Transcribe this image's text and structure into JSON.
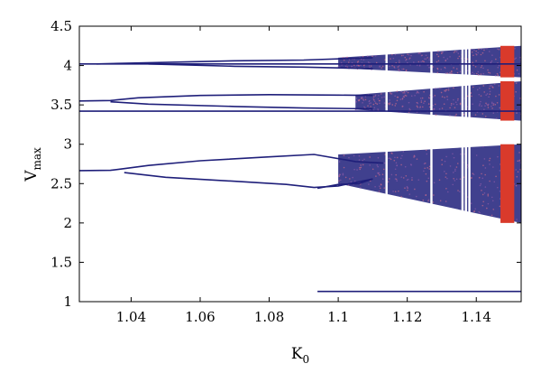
{
  "chart_data": {
    "type": "scatter",
    "subtype": "bifurcation-diagram",
    "title": "",
    "xlabel": {
      "main": "K",
      "sub": "0"
    },
    "ylabel": {
      "main": "V",
      "sub": "max"
    },
    "xlim": [
      1.025,
      1.153
    ],
    "ylim": [
      1.0,
      4.5
    ],
    "xticks": [
      1.04,
      1.06,
      1.08,
      1.1,
      1.12,
      1.14
    ],
    "xtick_labels": [
      "1.04",
      "1.06",
      "1.08",
      "1.1",
      "1.12",
      "1.14"
    ],
    "yticks": [
      1,
      1.5,
      2,
      2.5,
      3,
      3.5,
      4,
      4.5
    ],
    "ytick_labels": [
      "1",
      "1.5",
      "2",
      "2.5",
      "3",
      "3.5",
      "4",
      "4.5"
    ],
    "grid": false,
    "colors": {
      "primary": "#1f1f7a",
      "secondary": "#d93a2b"
    },
    "branches": [
      {
        "name": "low",
        "points": [
          [
            1.094,
            1.13
          ],
          [
            1.153,
            1.13
          ]
        ]
      },
      {
        "name": "main-upper",
        "points": [
          [
            1.025,
            2.665
          ],
          [
            1.034,
            2.668
          ],
          [
            1.038,
            2.69
          ],
          [
            1.045,
            2.73
          ],
          [
            1.06,
            2.79
          ],
          [
            1.08,
            2.84
          ],
          [
            1.093,
            2.87
          ],
          [
            1.105,
            2.78
          ],
          [
            1.113,
            2.76
          ]
        ]
      },
      {
        "name": "main-lower",
        "points": [
          [
            1.038,
            2.64
          ],
          [
            1.05,
            2.58
          ],
          [
            1.07,
            2.53
          ],
          [
            1.085,
            2.49
          ],
          [
            1.093,
            2.45
          ],
          [
            1.1,
            2.47
          ],
          [
            1.11,
            2.56
          ]
        ]
      },
      {
        "name": "main-mid",
        "points": [
          [
            1.094,
            2.44
          ],
          [
            1.1,
            2.49
          ],
          [
            1.106,
            2.5
          ],
          [
            1.11,
            2.56
          ]
        ]
      },
      {
        "name": "band-3.5-top",
        "points": [
          [
            1.025,
            3.55
          ],
          [
            1.034,
            3.555
          ],
          [
            1.042,
            3.59
          ],
          [
            1.06,
            3.62
          ],
          [
            1.08,
            3.63
          ],
          [
            1.1,
            3.625
          ],
          [
            1.11,
            3.62
          ]
        ]
      },
      {
        "name": "band-3.5-mid",
        "points": [
          [
            1.034,
            3.54
          ],
          [
            1.045,
            3.51
          ],
          [
            1.07,
            3.48
          ],
          [
            1.09,
            3.46
          ],
          [
            1.11,
            3.45
          ]
        ]
      },
      {
        "name": "band-3.4",
        "points": [
          [
            1.025,
            3.42
          ],
          [
            1.153,
            3.42
          ]
        ]
      },
      {
        "name": "band-4.0",
        "points": [
          [
            1.025,
            4.02
          ],
          [
            1.153,
            4.02
          ]
        ]
      },
      {
        "name": "band-4.0-upper",
        "points": [
          [
            1.03,
            4.02
          ],
          [
            1.05,
            4.04
          ],
          [
            1.07,
            4.06
          ],
          [
            1.09,
            4.07
          ],
          [
            1.11,
            4.1
          ]
        ]
      },
      {
        "name": "band-4.0-lower",
        "points": [
          [
            1.045,
            4.02
          ],
          [
            1.07,
            3.99
          ],
          [
            1.09,
            3.98
          ],
          [
            1.11,
            3.96
          ]
        ]
      }
    ],
    "chaotic_regions": [
      {
        "name": "main-band",
        "x_start": 1.1,
        "x_end": 1.153,
        "y_top_start": 2.87,
        "y_top_end": 3.0,
        "y_bottom_start": 2.5,
        "y_bottom_end": 2.0
      },
      {
        "name": "band-3.5",
        "x_start": 1.105,
        "x_end": 1.153,
        "y_top_start": 3.63,
        "y_top_end": 3.8,
        "y_bottom_start": 3.44,
        "y_bottom_end": 3.3
      },
      {
        "name": "band-4.0",
        "x_start": 1.1,
        "x_end": 1.153,
        "y_top_start": 4.1,
        "y_top_end": 4.25,
        "y_bottom_start": 3.97,
        "y_bottom_end": 3.85
      }
    ],
    "red_region_x": [
      1.147,
      1.151
    ],
    "periodic_windows_x": [
      1.114,
      1.127,
      1.136,
      1.137,
      1.138
    ]
  }
}
